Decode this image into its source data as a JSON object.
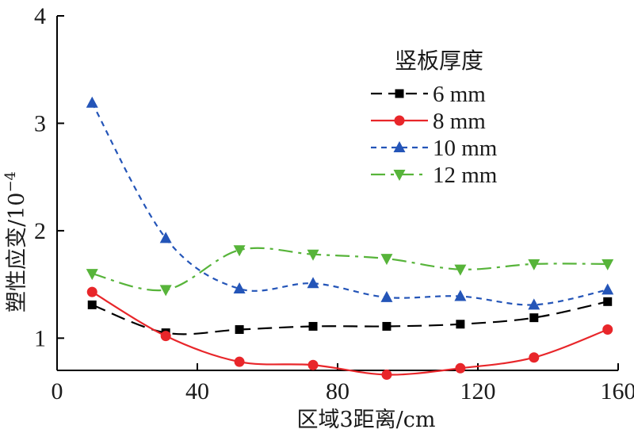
{
  "chart_data": {
    "type": "line",
    "xlabel": "区域3距离/cm",
    "ylabel_main": "塑性应变/10",
    "ylabel_exp": "−4",
    "xlim": [
      0,
      160
    ],
    "ylim": [
      0.7,
      4
    ],
    "x_ticks": [
      "0",
      "40",
      "80",
      "120",
      "160"
    ],
    "y_ticks": [
      "1",
      "2",
      "3",
      "4"
    ],
    "x_tick_values": [
      0,
      40,
      80,
      120,
      160
    ],
    "y_tick_values": [
      1,
      2,
      3,
      4
    ],
    "legend_title": "竖板厚度",
    "legend_position": "top-right",
    "grid": false,
    "x": [
      10,
      31,
      52,
      73,
      94,
      115,
      136,
      157
    ],
    "series": [
      {
        "name": "6 mm",
        "color": "#000000",
        "marker": "square",
        "line": "dashed",
        "values": [
          1.31,
          1.05,
          1.08,
          1.11,
          1.11,
          1.13,
          1.19,
          1.34
        ]
      },
      {
        "name": "8 mm",
        "color": "#e8262a",
        "marker": "circle",
        "line": "solid",
        "values": [
          1.43,
          1.02,
          0.78,
          0.75,
          0.66,
          0.72,
          0.82,
          1.08
        ]
      },
      {
        "name": "10 mm",
        "color": "#2455b8",
        "marker": "triangle-up",
        "line": "dotted",
        "values": [
          3.19,
          1.93,
          1.46,
          1.51,
          1.38,
          1.39,
          1.31,
          1.45
        ]
      },
      {
        "name": "12 mm",
        "color": "#57b43a",
        "marker": "triangle-down",
        "line": "dashdot",
        "values": [
          1.6,
          1.45,
          1.82,
          1.78,
          1.74,
          1.64,
          1.69,
          1.69
        ]
      }
    ]
  }
}
